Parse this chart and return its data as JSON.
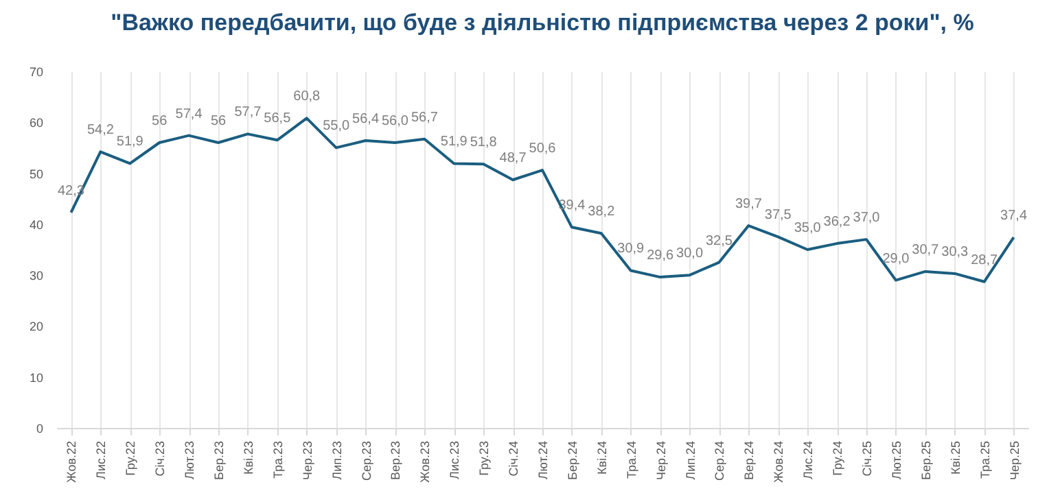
{
  "chart_data": {
    "type": "line",
    "title": "\"Важко передбачити, що буде з діяльністю підприємства через 2 роки\", %",
    "categories": [
      "Жов.22",
      "Лис.22",
      "Гру.22",
      "Січ.23",
      "Лют.23",
      "Бер.23",
      "Кві.23",
      "Тра.23",
      "Чер.23",
      "Лип.23",
      "Сер.23",
      "Вер.23",
      "Жов.23",
      "Лис.23",
      "Гру.23",
      "Січ.24",
      "Лют.24",
      "Бер.24",
      "Кві.24",
      "Тра.24",
      "Чер.24",
      "Лип.24",
      "Сер.24",
      "Вер.24",
      "Жов.24",
      "Лис.24",
      "Гру.24",
      "Січ.25",
      "Лют.25",
      "Бер.25",
      "Кві.25",
      "Тра.25",
      "Чер.25"
    ],
    "series": [
      {
        "color": "#1b5e80",
        "values": [
          42.3,
          54.2,
          51.9,
          56,
          57.4,
          56,
          57.7,
          56.5,
          60.8,
          55.0,
          56.4,
          56.0,
          56.7,
          51.9,
          51.8,
          48.7,
          50.6,
          39.4,
          38.2,
          30.9,
          29.6,
          30.0,
          32.5,
          39.7,
          37.5,
          35.0,
          36.2,
          37.0,
          29.0,
          30.7,
          30.3,
          28.7,
          37.4
        ],
        "value_labels": [
          "42,3",
          "54,2",
          "51,9",
          "56",
          "57,4",
          "56",
          "57,7",
          "56,5",
          "60,8",
          "55,0",
          "56,4",
          "56,0",
          "56,7",
          "51,9",
          "51,8",
          "48,7",
          "50,6",
          "39,4",
          "38,2",
          "30,9",
          "29,6",
          "30,0",
          "32,5",
          "39,7",
          "37,5",
          "35,0",
          "36,2",
          "37,0",
          "29,0",
          "30,7",
          "30,3",
          "28,7",
          "37,4"
        ]
      }
    ],
    "ylim": [
      0,
      70
    ],
    "yticks": [
      0,
      10,
      20,
      30,
      40,
      50,
      60,
      70
    ],
    "grid": "x",
    "legend": false,
    "marker": "none",
    "line_style": "solid"
  }
}
